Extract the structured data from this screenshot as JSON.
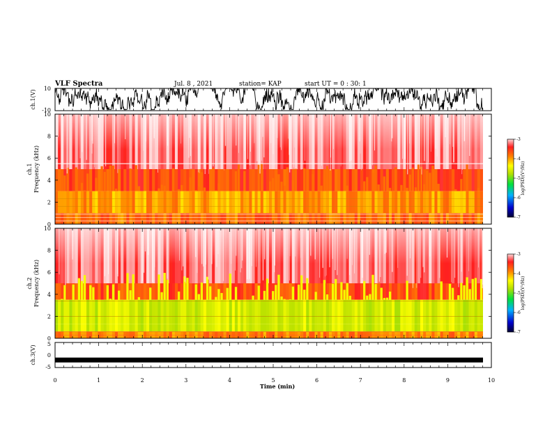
{
  "header": {
    "title": "VLF Spectra",
    "date": "Jul. 8 , 2021",
    "station": "station= KAP",
    "start": "start UT = 0 : 30: 1"
  },
  "chart_data": [
    {
      "type": "line",
      "panel": "ch1-waveform",
      "ylabel": "ch.1(V)",
      "ylim": [
        -10,
        10
      ],
      "yticks": [
        "10",
        "-10"
      ],
      "xlim": [
        0,
        10
      ],
      "note_values": "noisy waveform, amplitude mostly between about -8 V and +10 V, saturating near the top"
    },
    {
      "type": "heatmap",
      "panel": "ch1-spectrogram",
      "ylabel": "ch.1 Frequency (kHz)",
      "ylim": [
        0,
        10
      ],
      "yticks": [
        "0",
        "2",
        "4",
        "6",
        "8",
        "10"
      ],
      "xlim": [
        0,
        10
      ],
      "colorbar": {
        "label": "log(PSD)(V²/Hz)",
        "range": [
          -7,
          -3
        ],
        "ticks": [
          "-3",
          "-4",
          "-5",
          "-6",
          "-7"
        ]
      },
      "bands": [
        {
          "f_range": [
            5.0,
            10.0
          ],
          "level": -3.2
        },
        {
          "f_range": [
            3.0,
            5.0
          ],
          "level": -3.6
        },
        {
          "f_range": [
            1.0,
            3.0
          ],
          "level": -4.0
        },
        {
          "f_range": [
            0.0,
            1.0
          ],
          "level": -3.8
        }
      ],
      "line_kHz": 5.5
    },
    {
      "type": "heatmap",
      "panel": "ch2-spectrogram",
      "ylabel": "ch.2 Frequency (kHz)",
      "ylim": [
        0,
        10
      ],
      "yticks": [
        "0",
        "2",
        "4",
        "6",
        "8",
        "10"
      ],
      "xlim": [
        0,
        10
      ],
      "colorbar": {
        "label": "log(PSD)(V²/Hz)",
        "range": [
          -7,
          -3
        ],
        "ticks": [
          "-3",
          "-4",
          "-5",
          "-6",
          "-7"
        ]
      },
      "bands": [
        {
          "f_range": [
            5.0,
            10.0
          ],
          "level": -3.2
        },
        {
          "f_range": [
            3.5,
            5.0
          ],
          "level": -3.6
        },
        {
          "f_range": [
            0.6,
            3.5
          ],
          "level": -4.6
        },
        {
          "f_range": [
            0.0,
            0.6
          ],
          "level": -3.9
        }
      ]
    },
    {
      "type": "line",
      "panel": "ch3-waveform",
      "ylabel": "ch.3(V)",
      "ylim": [
        -5,
        5
      ],
      "yticks": [
        "5",
        "0",
        "-5"
      ],
      "xlim": [
        0,
        10
      ],
      "xlabel": "Time (min)",
      "xticks": [
        "0",
        "1",
        "2",
        "3",
        "4",
        "5",
        "6",
        "7",
        "8",
        "9",
        "10"
      ],
      "note_values": "near-constant trace at about -2 V with small fluctuation"
    }
  ]
}
